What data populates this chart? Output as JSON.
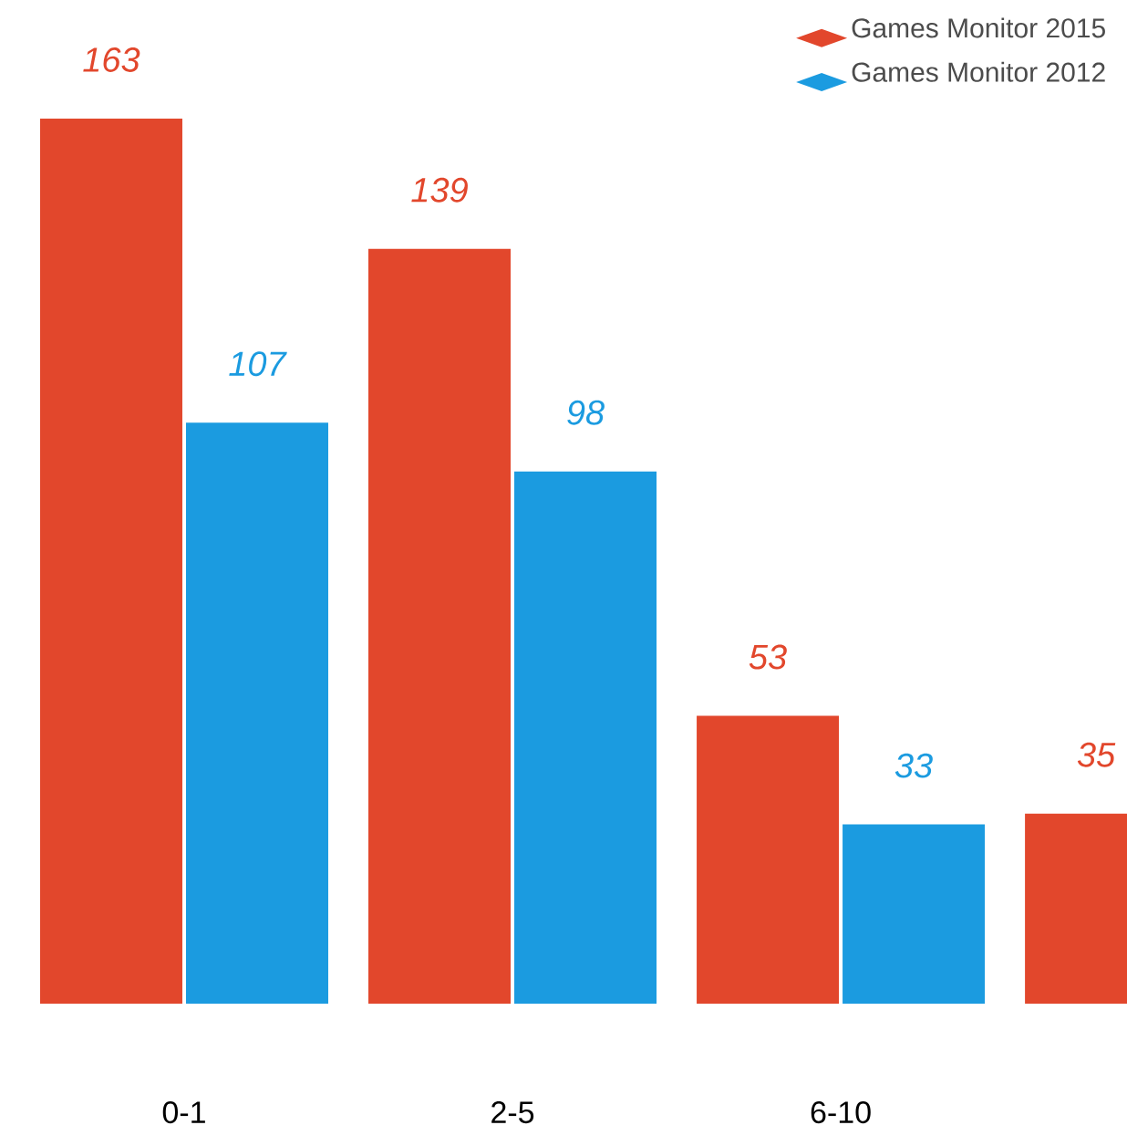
{
  "chart_data": {
    "type": "bar",
    "categories": [
      "0-1",
      "2-5",
      "6-10",
      null
    ],
    "series": [
      {
        "name": "Games Monitor 2015",
        "color": "#e2472c",
        "values": [
          163,
          139,
          53,
          35
        ]
      },
      {
        "name": "Games Monitor 2012",
        "color": "#1b9be0",
        "values": [
          107,
          98,
          33,
          null
        ]
      }
    ],
    "data_labels": true,
    "legend": "top right"
  }
}
